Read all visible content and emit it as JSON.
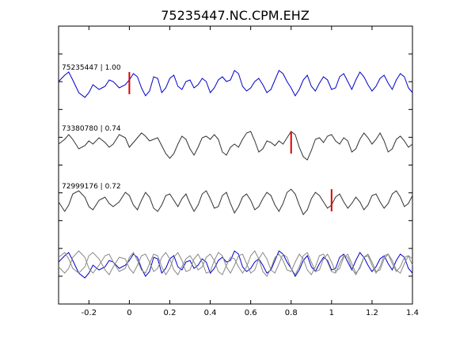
{
  "chart_data": {
    "type": "line",
    "title": "75235447.NC.CPM.EHZ",
    "xlabel": "",
    "ylabel": "",
    "xlim": [
      -0.35,
      1.4
    ],
    "x_ticks": [
      -0.2,
      0,
      0.2,
      0.4,
      0.6,
      0.8,
      1,
      1.2,
      1.4
    ],
    "x_tick_labels": [
      "-0.2",
      "0",
      "0.2",
      "0.4",
      "0.6",
      "0.8",
      "1",
      "1.2",
      "1.4"
    ],
    "grid": false,
    "series": [
      {
        "name": "75235447 | 1.00",
        "color": "#0000cc",
        "pick_time": 0.0,
        "pick_color": "#dd0000",
        "x": [
          -0.35,
          -0.32,
          -0.3,
          -0.28,
          -0.25,
          -0.22,
          -0.2,
          -0.18,
          -0.15,
          -0.12,
          -0.1,
          -0.08,
          -0.05,
          -0.02,
          0,
          0.02,
          0.04,
          0.06,
          0.08,
          0.1,
          0.12,
          0.14,
          0.16,
          0.18,
          0.2,
          0.22,
          0.24,
          0.26,
          0.28,
          0.3,
          0.32,
          0.34,
          0.36,
          0.38,
          0.4,
          0.42,
          0.44,
          0.46,
          0.48,
          0.5,
          0.52,
          0.54,
          0.56,
          0.58,
          0.6,
          0.62,
          0.64,
          0.66,
          0.68,
          0.7,
          0.72,
          0.74,
          0.76,
          0.78,
          0.8,
          0.82,
          0.84,
          0.86,
          0.88,
          0.9,
          0.92,
          0.94,
          0.96,
          0.98,
          1,
          1.02,
          1.04,
          1.06,
          1.08,
          1.1,
          1.12,
          1.14,
          1.16,
          1.18,
          1.2,
          1.22,
          1.24,
          1.26,
          1.28,
          1.3,
          1.32,
          1.34,
          1.36,
          1.38,
          1.4
        ],
        "y": [
          0.1,
          0.5,
          0.7,
          0.2,
          -0.6,
          -0.9,
          -0.6,
          -0.1,
          -0.4,
          -0.2,
          0.2,
          0.1,
          -0.3,
          -0.1,
          0.2,
          0.6,
          0.4,
          -0.3,
          -0.8,
          -0.5,
          0.4,
          0.3,
          -0.6,
          -0.3,
          0.3,
          0.5,
          -0.2,
          -0.4,
          0.1,
          0.2,
          -0.3,
          -0.1,
          0.3,
          0.1,
          -0.6,
          -0.3,
          0.2,
          0.4,
          0.1,
          0.2,
          0.8,
          0.6,
          -0.2,
          -0.5,
          -0.3,
          0.1,
          0.3,
          -0.1,
          -0.6,
          -0.4,
          0.2,
          0.8,
          0.6,
          0.1,
          -0.3,
          -0.8,
          -0.4,
          0.2,
          0.5,
          -0.2,
          -0.5,
          0.0,
          0.4,
          0.2,
          -0.4,
          -0.3,
          0.4,
          0.6,
          0.1,
          -0.4,
          0.2,
          0.7,
          0.4,
          -0.1,
          -0.5,
          -0.2,
          0.3,
          0.5,
          0.0,
          -0.4,
          0.2,
          0.6,
          0.4,
          -0.3,
          -0.6
        ]
      },
      {
        "name": "73380780 | 0.74",
        "color": "#333333",
        "pick_time": 0.8,
        "pick_color": "#dd0000",
        "x": [
          -0.35,
          -0.32,
          -0.3,
          -0.28,
          -0.25,
          -0.22,
          -0.2,
          -0.18,
          -0.15,
          -0.12,
          -0.1,
          -0.08,
          -0.05,
          -0.02,
          0,
          0.02,
          0.04,
          0.06,
          0.08,
          0.1,
          0.12,
          0.14,
          0.16,
          0.18,
          0.2,
          0.22,
          0.24,
          0.26,
          0.28,
          0.3,
          0.32,
          0.34,
          0.36,
          0.38,
          0.4,
          0.42,
          0.44,
          0.46,
          0.48,
          0.5,
          0.52,
          0.54,
          0.56,
          0.58,
          0.6,
          0.62,
          0.64,
          0.66,
          0.68,
          0.7,
          0.72,
          0.74,
          0.76,
          0.78,
          0.8,
          0.82,
          0.84,
          0.86,
          0.88,
          0.9,
          0.92,
          0.94,
          0.96,
          0.98,
          1,
          1.02,
          1.04,
          1.06,
          1.08,
          1.1,
          1.12,
          1.14,
          1.16,
          1.18,
          1.2,
          1.22,
          1.24,
          1.26,
          1.28,
          1.3,
          1.32,
          1.34,
          1.36,
          1.38,
          1.4
        ],
        "y": [
          0.0,
          0.3,
          0.6,
          0.3,
          -0.3,
          -0.1,
          0.2,
          0.0,
          0.4,
          0.1,
          -0.2,
          0.0,
          0.6,
          0.4,
          -0.2,
          0.1,
          0.4,
          0.7,
          0.5,
          0.2,
          0.3,
          0.4,
          -0.1,
          -0.6,
          -0.9,
          -0.6,
          0.0,
          0.5,
          0.3,
          -0.3,
          -0.7,
          -0.2,
          0.4,
          0.5,
          0.3,
          0.6,
          0.3,
          -0.5,
          -0.7,
          -0.2,
          0.0,
          -0.2,
          0.3,
          0.7,
          0.8,
          0.2,
          -0.5,
          -0.3,
          0.2,
          0.1,
          -0.1,
          0.2,
          0.0,
          0.4,
          0.8,
          0.6,
          -0.2,
          -0.8,
          -1.0,
          -0.4,
          0.3,
          0.4,
          0.1,
          0.5,
          0.6,
          0.2,
          0.0,
          0.4,
          0.2,
          -0.5,
          -0.3,
          0.3,
          0.7,
          0.4,
          0.0,
          0.3,
          0.7,
          0.2,
          -0.5,
          -0.3,
          0.3,
          0.5,
          0.2,
          -0.2,
          0.0
        ]
      },
      {
        "name": "72999176 | 0.72",
        "color": "#333333",
        "pick_time": 1.0,
        "pick_color": "#dd0000",
        "x": [
          -0.35,
          -0.32,
          -0.3,
          -0.28,
          -0.25,
          -0.22,
          -0.2,
          -0.18,
          -0.15,
          -0.12,
          -0.1,
          -0.08,
          -0.05,
          -0.02,
          0,
          0.02,
          0.04,
          0.06,
          0.08,
          0.1,
          0.12,
          0.14,
          0.16,
          0.18,
          0.2,
          0.22,
          0.24,
          0.26,
          0.28,
          0.3,
          0.32,
          0.34,
          0.36,
          0.38,
          0.4,
          0.42,
          0.44,
          0.46,
          0.48,
          0.5,
          0.52,
          0.54,
          0.56,
          0.58,
          0.6,
          0.62,
          0.64,
          0.66,
          0.68,
          0.7,
          0.72,
          0.74,
          0.76,
          0.78,
          0.8,
          0.82,
          0.84,
          0.86,
          0.88,
          0.9,
          0.92,
          0.94,
          0.96,
          0.98,
          1,
          1.02,
          1.04,
          1.06,
          1.08,
          1.1,
          1.12,
          1.14,
          1.16,
          1.18,
          1.2,
          1.22,
          1.24,
          1.26,
          1.28,
          1.3,
          1.32,
          1.34,
          1.36,
          1.38,
          1.4
        ],
        "y": [
          0.0,
          -0.6,
          -0.2,
          0.5,
          0.7,
          0.3,
          -0.3,
          -0.5,
          0.1,
          0.3,
          -0.1,
          -0.3,
          0.0,
          0.6,
          0.4,
          -0.2,
          -0.5,
          0.1,
          0.6,
          0.3,
          -0.4,
          -0.6,
          -0.2,
          0.4,
          0.5,
          0.1,
          -0.3,
          0.2,
          0.5,
          -0.1,
          -0.6,
          -0.2,
          0.5,
          0.7,
          0.2,
          -0.4,
          -0.3,
          0.4,
          0.6,
          -0.1,
          -0.7,
          -0.3,
          0.3,
          0.5,
          0.1,
          -0.5,
          -0.3,
          0.2,
          0.6,
          0.4,
          -0.2,
          -0.6,
          -0.1,
          0.6,
          0.8,
          0.5,
          -0.2,
          -0.8,
          -0.5,
          0.2,
          0.6,
          0.4,
          0.0,
          -0.4,
          -0.2,
          0.3,
          0.5,
          0.0,
          -0.4,
          -0.1,
          0.3,
          0.0,
          -0.5,
          -0.2,
          0.4,
          0.5,
          0.0,
          -0.4,
          -0.1,
          0.5,
          0.7,
          0.3,
          -0.3,
          -0.1,
          0.4
        ]
      },
      {
        "name": "",
        "color": "#0000cc",
        "group": "overlay",
        "x": [
          -0.35,
          -0.32,
          -0.3,
          -0.28,
          -0.25,
          -0.22,
          -0.2,
          -0.18,
          -0.15,
          -0.12,
          -0.1,
          -0.08,
          -0.05,
          -0.02,
          0,
          0.02,
          0.04,
          0.06,
          0.08,
          0.1,
          0.12,
          0.14,
          0.16,
          0.18,
          0.2,
          0.22,
          0.24,
          0.26,
          0.28,
          0.3,
          0.32,
          0.34,
          0.36,
          0.38,
          0.4,
          0.42,
          0.44,
          0.46,
          0.48,
          0.5,
          0.52,
          0.54,
          0.56,
          0.58,
          0.6,
          0.62,
          0.64,
          0.66,
          0.68,
          0.7,
          0.72,
          0.74,
          0.76,
          0.78,
          0.8,
          0.82,
          0.84,
          0.86,
          0.88,
          0.9,
          0.92,
          0.94,
          0.96,
          0.98,
          1,
          1.02,
          1.04,
          1.06,
          1.08,
          1.1,
          1.12,
          1.14,
          1.16,
          1.18,
          1.2,
          1.22,
          1.24,
          1.26,
          1.28,
          1.3,
          1.32,
          1.34,
          1.36,
          1.38,
          1.4
        ],
        "y": [
          0.1,
          0.5,
          0.7,
          0.2,
          -0.6,
          -0.9,
          -0.6,
          -0.1,
          -0.4,
          -0.2,
          0.2,
          0.1,
          -0.3,
          -0.1,
          0.2,
          0.6,
          0.4,
          -0.3,
          -0.8,
          -0.5,
          0.4,
          0.3,
          -0.6,
          -0.3,
          0.3,
          0.5,
          -0.2,
          -0.4,
          0.1,
          0.2,
          -0.3,
          -0.1,
          0.3,
          0.1,
          -0.6,
          -0.3,
          0.2,
          0.4,
          0.1,
          0.2,
          0.8,
          0.6,
          -0.2,
          -0.5,
          -0.3,
          0.1,
          0.3,
          -0.1,
          -0.6,
          -0.4,
          0.2,
          0.8,
          0.6,
          0.1,
          -0.3,
          -0.8,
          -0.4,
          0.2,
          0.5,
          -0.2,
          -0.5,
          0.0,
          0.4,
          0.2,
          -0.4,
          -0.3,
          0.4,
          0.6,
          0.1,
          -0.4,
          0.2,
          0.7,
          0.4,
          -0.1,
          -0.5,
          -0.2,
          0.3,
          0.5,
          0.0,
          -0.4,
          0.2,
          0.6,
          0.4,
          -0.3,
          -0.6
        ]
      },
      {
        "name": "",
        "color": "#888888",
        "group": "overlay",
        "x": [
          -0.35,
          -0.32,
          -0.3,
          -0.28,
          -0.25,
          -0.22,
          -0.2,
          -0.18,
          -0.15,
          -0.12,
          -0.1,
          -0.08,
          -0.05,
          -0.02,
          0,
          0.02,
          0.04,
          0.06,
          0.08,
          0.1,
          0.12,
          0.14,
          0.16,
          0.18,
          0.2,
          0.22,
          0.24,
          0.26,
          0.28,
          0.3,
          0.32,
          0.34,
          0.36,
          0.38,
          0.4,
          0.42,
          0.44,
          0.46,
          0.48,
          0.5,
          0.52,
          0.54,
          0.56,
          0.58,
          0.6,
          0.62,
          0.64,
          0.66,
          0.68,
          0.7,
          0.72,
          0.74,
          0.76,
          0.78,
          0.8,
          0.82,
          0.84,
          0.86,
          0.88,
          0.9,
          0.92,
          0.94,
          0.96,
          0.98,
          1,
          1.02,
          1.04,
          1.06,
          1.08,
          1.1,
          1.12,
          1.14,
          1.16,
          1.18,
          1.2,
          1.22,
          1.24,
          1.26,
          1.28,
          1.3,
          1.32,
          1.34,
          1.36,
          1.38,
          1.4
        ],
        "y": [
          0.4,
          0.7,
          0.3,
          -0.3,
          -0.6,
          -0.2,
          0.5,
          0.7,
          0.3,
          -0.4,
          -0.7,
          -0.2,
          0.4,
          0.3,
          -0.3,
          -0.6,
          -0.1,
          0.5,
          0.6,
          0.1,
          -0.5,
          -0.3,
          0.4,
          0.7,
          0.3,
          -0.4,
          -0.7,
          -0.2,
          0.3,
          0.5,
          0.1,
          -0.4,
          -0.2,
          0.4,
          0.6,
          0.2,
          -0.5,
          -0.7,
          -0.1,
          0.4,
          0.3,
          -0.2,
          -0.6,
          -0.2,
          0.5,
          0.8,
          0.3,
          -0.5,
          -0.8,
          -0.3,
          0.4,
          0.6,
          0.2,
          -0.4,
          -0.5,
          0.1,
          0.6,
          0.3,
          -0.4,
          -0.7,
          -0.2,
          0.5,
          0.6,
          0.1,
          -0.5,
          -0.6,
          0.0,
          0.5,
          0.4,
          -0.3,
          -0.7,
          -0.2,
          0.4,
          0.6,
          0.1,
          -0.5,
          -0.4,
          0.3,
          0.6,
          0.2,
          -0.4,
          -0.6,
          0.0,
          0.5,
          0.3
        ]
      },
      {
        "name": "",
        "color": "#888888",
        "group": "overlay",
        "x": [
          -0.35,
          -0.32,
          -0.3,
          -0.28,
          -0.25,
          -0.22,
          -0.2,
          -0.18,
          -0.15,
          -0.12,
          -0.1,
          -0.08,
          -0.05,
          -0.02,
          0,
          0.02,
          0.04,
          0.06,
          0.08,
          0.1,
          0.12,
          0.14,
          0.16,
          0.18,
          0.2,
          0.22,
          0.24,
          0.26,
          0.28,
          0.3,
          0.32,
          0.34,
          0.36,
          0.38,
          0.4,
          0.42,
          0.44,
          0.46,
          0.48,
          0.5,
          0.52,
          0.54,
          0.56,
          0.58,
          0.6,
          0.62,
          0.64,
          0.66,
          0.68,
          0.7,
          0.72,
          0.74,
          0.76,
          0.78,
          0.8,
          0.82,
          0.84,
          0.86,
          0.88,
          0.9,
          0.92,
          0.94,
          0.96,
          0.98,
          1,
          1.02,
          1.04,
          1.06,
          1.08,
          1.1,
          1.12,
          1.14,
          1.16,
          1.18,
          1.2,
          1.22,
          1.24,
          1.26,
          1.28,
          1.3,
          1.32,
          1.34,
          1.36,
          1.38,
          1.4
        ],
        "y": [
          -0.2,
          -0.6,
          -0.3,
          0.4,
          0.8,
          0.4,
          -0.3,
          -0.6,
          -0.1,
          0.5,
          0.6,
          0.1,
          -0.5,
          -0.3,
          0.4,
          0.7,
          0.2,
          -0.4,
          -0.6,
          0.0,
          0.6,
          0.5,
          -0.2,
          -0.7,
          -0.3,
          0.4,
          0.7,
          0.2,
          -0.5,
          -0.4,
          0.3,
          0.6,
          0.1,
          -0.6,
          -0.5,
          0.2,
          0.7,
          0.5,
          -0.2,
          -0.6,
          -0.1,
          0.5,
          0.6,
          0.0,
          -0.6,
          -0.4,
          0.3,
          0.7,
          0.3,
          -0.4,
          -0.6,
          0.0,
          0.6,
          0.4,
          -0.3,
          -0.7,
          -0.2,
          0.5,
          0.7,
          0.1,
          -0.5,
          -0.4,
          0.3,
          0.6,
          0.1,
          -0.5,
          -0.3,
          0.4,
          0.6,
          0.0,
          -0.6,
          -0.3,
          0.4,
          0.5,
          -0.1,
          -0.6,
          -0.2,
          0.5,
          0.6,
          0.0,
          -0.5,
          -0.2,
          0.4,
          0.5,
          -0.1
        ]
      }
    ]
  }
}
